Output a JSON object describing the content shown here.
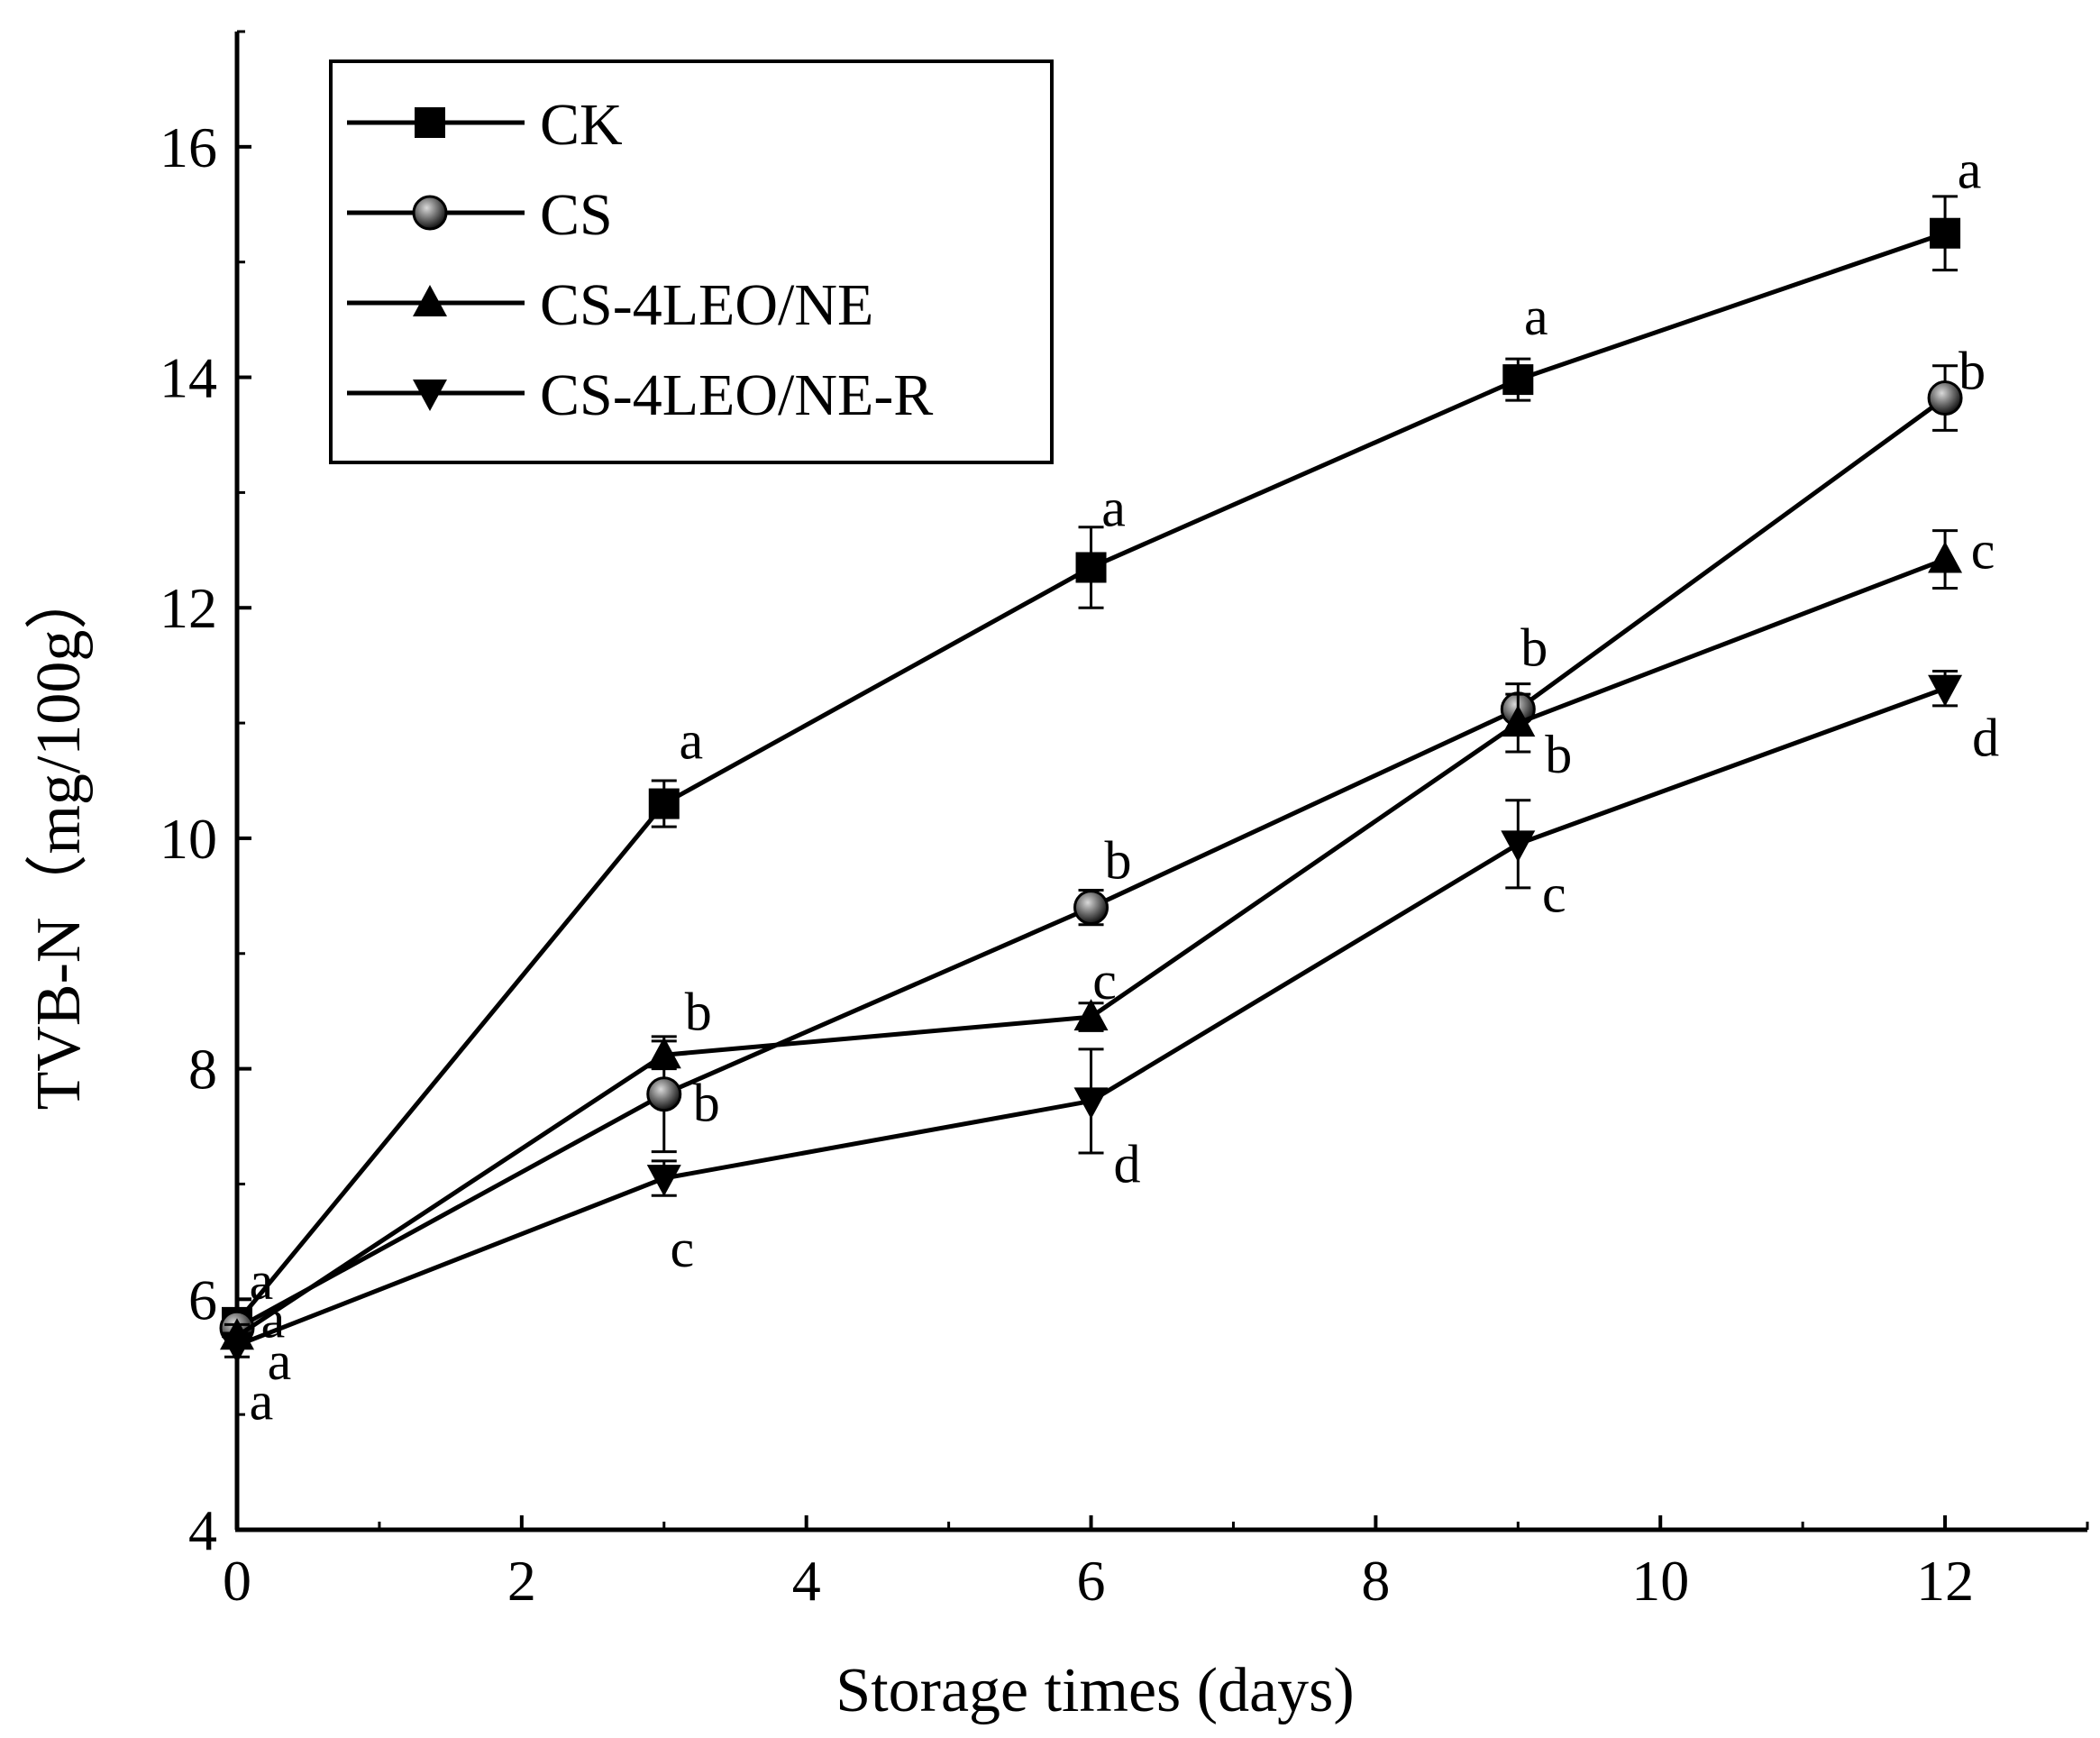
{
  "chart_data": {
    "type": "line",
    "title": "",
    "xlabel": "Storage times (days)",
    "ylabel": "TVB-N（mg/100g）",
    "xlim": [
      0,
      13
    ],
    "ylim": [
      4,
      17
    ],
    "xticks": [
      0,
      2,
      4,
      6,
      8,
      10,
      12
    ],
    "yticks": [
      4,
      6,
      8,
      10,
      12,
      14,
      16
    ],
    "x": [
      0,
      3,
      6,
      9,
      12
    ],
    "legend_position": "top-left",
    "grid": false,
    "series": [
      {
        "name": "CK",
        "marker": "square",
        "values": [
          5.8,
          10.3,
          12.35,
          13.98,
          15.25
        ],
        "errors": [
          0.1,
          0.2,
          0.35,
          0.18,
          0.32
        ],
        "letters": [
          "a",
          "a",
          "a",
          "a",
          "a"
        ]
      },
      {
        "name": "CS",
        "marker": "circle",
        "values": [
          5.75,
          7.78,
          9.4,
          11.12,
          13.82
        ],
        "errors": [
          0.1,
          0.5,
          0.15,
          0.22,
          0.28
        ],
        "letters": [
          "a",
          "b",
          "b",
          "b",
          "b"
        ]
      },
      {
        "name": "CS-4LEO/NE",
        "marker": "triangle-up",
        "values": [
          5.68,
          8.12,
          8.45,
          11.0,
          12.42
        ],
        "errors": [
          0.1,
          0.12,
          0.12,
          0.25,
          0.25
        ],
        "letters": [
          "a",
          "b",
          "c",
          "b",
          "c"
        ]
      },
      {
        "name": "CS-4LEO/NE-R",
        "marker": "triangle-down",
        "values": [
          5.6,
          7.05,
          7.72,
          9.95,
          11.3
        ],
        "errors": [
          0.1,
          0.15,
          0.45,
          0.38,
          0.15
        ],
        "letters": [
          "a",
          "c",
          "d",
          "c",
          "d"
        ]
      }
    ]
  }
}
